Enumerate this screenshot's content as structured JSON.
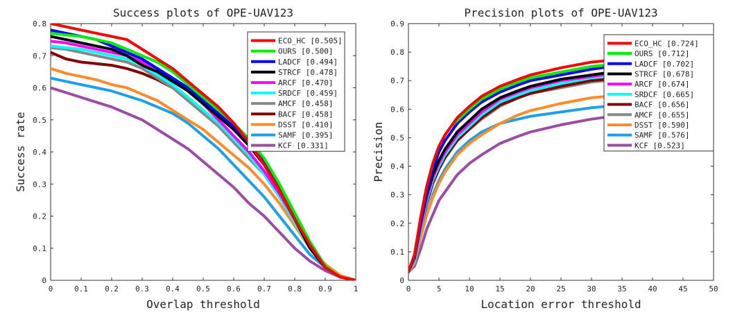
{
  "colors": {
    "ECO_HC": "#ff0000",
    "OURS": "#00ee00",
    "LADCF": "#0000ff",
    "STRCF": "#000000",
    "ARCF": "#ff00ff",
    "SRDCF": "#00ffff",
    "AMCF": "#888888",
    "BACF": "#800000",
    "DSST": "#ff8c2a",
    "SAMF": "#1ea0e6",
    "KCF": "#9b4da5"
  },
  "chart_data": [
    {
      "type": "line",
      "title": "Success plots of OPE-UAV123",
      "xlabel": "Overlap threshold",
      "ylabel": "Success rate",
      "xlim": [
        0,
        1
      ],
      "ylim": [
        0,
        0.8
      ],
      "xticks": [
        "0",
        "0.1",
        "0.2",
        "0.3",
        "0.4",
        "0.5",
        "0.6",
        "0.7",
        "0.8",
        "0.9",
        "1"
      ],
      "yticks": [
        "0",
        "0.1",
        "0.2",
        "0.3",
        "0.4",
        "0.5",
        "0.6",
        "0.7",
        "0.8"
      ],
      "legend_position": "top-right",
      "x": [
        0,
        0.05,
        0.1,
        0.15,
        0.2,
        0.25,
        0.3,
        0.35,
        0.4,
        0.45,
        0.5,
        0.55,
        0.6,
        0.65,
        0.7,
        0.75,
        0.8,
        0.85,
        0.9,
        0.95,
        1.0
      ],
      "series": [
        {
          "name": "ECO_HC [0.505]",
          "key": "ECO_HC",
          "values": [
            0.8,
            0.79,
            0.78,
            0.77,
            0.76,
            0.75,
            0.72,
            0.69,
            0.66,
            0.62,
            0.58,
            0.54,
            0.49,
            0.43,
            0.36,
            0.28,
            0.19,
            0.11,
            0.04,
            0.01,
            0.0
          ]
        },
        {
          "name": "OURS [0.500]",
          "key": "OURS",
          "values": [
            0.77,
            0.765,
            0.76,
            0.75,
            0.74,
            0.72,
            0.7,
            0.68,
            0.65,
            0.61,
            0.57,
            0.53,
            0.49,
            0.44,
            0.38,
            0.3,
            0.21,
            0.12,
            0.045,
            0.01,
            0.0
          ]
        },
        {
          "name": "LADCF [0.494]",
          "key": "LADCF",
          "values": [
            0.78,
            0.77,
            0.76,
            0.75,
            0.73,
            0.71,
            0.69,
            0.66,
            0.63,
            0.6,
            0.56,
            0.52,
            0.48,
            0.43,
            0.37,
            0.29,
            0.2,
            0.11,
            0.04,
            0.01,
            0.0
          ]
        },
        {
          "name": "STRCF [0.478]",
          "key": "STRCF",
          "values": [
            0.76,
            0.75,
            0.74,
            0.73,
            0.72,
            0.7,
            0.67,
            0.65,
            0.62,
            0.59,
            0.55,
            0.51,
            0.47,
            0.42,
            0.36,
            0.28,
            0.19,
            0.1,
            0.04,
            0.01,
            0.0
          ]
        },
        {
          "name": "ARCF [0.470]",
          "key": "ARCF",
          "values": [
            0.745,
            0.74,
            0.73,
            0.72,
            0.71,
            0.7,
            0.68,
            0.66,
            0.63,
            0.59,
            0.55,
            0.5,
            0.45,
            0.4,
            0.34,
            0.27,
            0.19,
            0.1,
            0.04,
            0.01,
            0.0
          ]
        },
        {
          "name": "SRDCF [0.459]",
          "key": "SRDCF",
          "values": [
            0.73,
            0.725,
            0.72,
            0.71,
            0.7,
            0.69,
            0.67,
            0.64,
            0.61,
            0.57,
            0.53,
            0.49,
            0.44,
            0.39,
            0.33,
            0.26,
            0.18,
            0.1,
            0.04,
            0.01,
            0.0
          ]
        },
        {
          "name": "AMCF [0.458]",
          "key": "AMCF",
          "values": [
            0.725,
            0.72,
            0.71,
            0.7,
            0.69,
            0.68,
            0.66,
            0.63,
            0.6,
            0.56,
            0.52,
            0.48,
            0.43,
            0.38,
            0.33,
            0.26,
            0.18,
            0.1,
            0.04,
            0.01,
            0.0
          ]
        },
        {
          "name": "BACF [0.458]",
          "key": "BACF",
          "values": [
            0.71,
            0.69,
            0.68,
            0.675,
            0.67,
            0.66,
            0.645,
            0.625,
            0.6,
            0.57,
            0.53,
            0.49,
            0.45,
            0.4,
            0.34,
            0.27,
            0.19,
            0.1,
            0.04,
            0.01,
            0.0
          ]
        },
        {
          "name": "DSST [0.410]",
          "key": "DSST",
          "values": [
            0.66,
            0.645,
            0.635,
            0.625,
            0.61,
            0.6,
            0.58,
            0.56,
            0.53,
            0.5,
            0.47,
            0.43,
            0.39,
            0.35,
            0.3,
            0.24,
            0.17,
            0.1,
            0.05,
            0.015,
            0.0
          ]
        },
        {
          "name": "SAMF [0.395]",
          "key": "SAMF",
          "values": [
            0.63,
            0.62,
            0.61,
            0.6,
            0.59,
            0.575,
            0.56,
            0.54,
            0.52,
            0.49,
            0.45,
            0.41,
            0.36,
            0.31,
            0.26,
            0.2,
            0.14,
            0.08,
            0.04,
            0.01,
            0.0
          ]
        },
        {
          "name": "KCF [0.331]",
          "key": "KCF",
          "values": [
            0.6,
            0.585,
            0.57,
            0.555,
            0.54,
            0.52,
            0.5,
            0.47,
            0.44,
            0.41,
            0.37,
            0.33,
            0.29,
            0.24,
            0.2,
            0.15,
            0.1,
            0.06,
            0.03,
            0.01,
            0.0
          ]
        }
      ]
    },
    {
      "type": "line",
      "title": "Precision plots of OPE-UAV123",
      "xlabel": "Location error threshold",
      "ylabel": "Precision",
      "xlim": [
        0,
        50
      ],
      "ylim": [
        0,
        0.9
      ],
      "xticks": [
        "0",
        "5",
        "10",
        "15",
        "20",
        "25",
        "30",
        "35",
        "40",
        "45",
        "50"
      ],
      "yticks": [
        "0",
        "0.1",
        "0.2",
        "0.3",
        "0.4",
        "0.5",
        "0.6",
        "0.7",
        "0.8",
        "0.9"
      ],
      "legend_position": "top-right",
      "x": [
        0,
        1,
        2,
        3,
        4,
        5,
        6,
        7,
        8,
        10,
        12,
        15,
        18,
        20,
        25,
        30,
        35,
        40,
        45,
        50
      ],
      "series": [
        {
          "name": "ECO_HC [0.724]",
          "key": "ECO_HC",
          "values": [
            0.03,
            0.09,
            0.22,
            0.33,
            0.41,
            0.47,
            0.51,
            0.54,
            0.57,
            0.61,
            0.645,
            0.68,
            0.705,
            0.72,
            0.745,
            0.765,
            0.775,
            0.785,
            0.795,
            0.8
          ]
        },
        {
          "name": "OURS [0.712]",
          "key": "OURS",
          "values": [
            0.03,
            0.09,
            0.22,
            0.33,
            0.41,
            0.47,
            0.51,
            0.54,
            0.56,
            0.6,
            0.635,
            0.67,
            0.695,
            0.71,
            0.73,
            0.75,
            0.76,
            0.77,
            0.78,
            0.79
          ]
        },
        {
          "name": "LADCF [0.702]",
          "key": "LADCF",
          "values": [
            0.03,
            0.08,
            0.2,
            0.31,
            0.39,
            0.45,
            0.49,
            0.52,
            0.55,
            0.59,
            0.625,
            0.66,
            0.685,
            0.7,
            0.72,
            0.74,
            0.755,
            0.765,
            0.775,
            0.785
          ]
        },
        {
          "name": "STRCF [0.678]",
          "key": "STRCF",
          "values": [
            0.03,
            0.08,
            0.2,
            0.3,
            0.37,
            0.42,
            0.46,
            0.49,
            0.52,
            0.56,
            0.6,
            0.64,
            0.665,
            0.68,
            0.705,
            0.72,
            0.735,
            0.745,
            0.755,
            0.76
          ]
        },
        {
          "name": "ARCF [0.674]",
          "key": "ARCF",
          "values": [
            0.03,
            0.08,
            0.19,
            0.29,
            0.36,
            0.41,
            0.45,
            0.48,
            0.51,
            0.55,
            0.59,
            0.635,
            0.66,
            0.675,
            0.7,
            0.715,
            0.73,
            0.74,
            0.75,
            0.76
          ]
        },
        {
          "name": "SRDCF [0.665]",
          "key": "SRDCF",
          "values": [
            0.03,
            0.07,
            0.18,
            0.28,
            0.35,
            0.4,
            0.44,
            0.47,
            0.5,
            0.54,
            0.58,
            0.625,
            0.65,
            0.665,
            0.69,
            0.71,
            0.72,
            0.73,
            0.74,
            0.75
          ]
        },
        {
          "name": "BACF [0.656]",
          "key": "BACF",
          "values": [
            0.03,
            0.07,
            0.18,
            0.27,
            0.34,
            0.39,
            0.43,
            0.46,
            0.49,
            0.53,
            0.57,
            0.615,
            0.64,
            0.655,
            0.68,
            0.7,
            0.71,
            0.72,
            0.73,
            0.74
          ]
        },
        {
          "name": "AMCF [0.655]",
          "key": "AMCF",
          "values": [
            0.03,
            0.07,
            0.18,
            0.27,
            0.34,
            0.39,
            0.43,
            0.46,
            0.49,
            0.53,
            0.565,
            0.61,
            0.64,
            0.655,
            0.675,
            0.695,
            0.705,
            0.715,
            0.725,
            0.73
          ]
        },
        {
          "name": "DSST [0.590]",
          "key": "DSST",
          "values": [
            0.03,
            0.06,
            0.15,
            0.23,
            0.29,
            0.34,
            0.38,
            0.41,
            0.44,
            0.48,
            0.51,
            0.55,
            0.58,
            0.595,
            0.62,
            0.64,
            0.65,
            0.66,
            0.67,
            0.68
          ]
        },
        {
          "name": "SAMF [0.576]",
          "key": "SAMF",
          "values": [
            0.03,
            0.06,
            0.15,
            0.23,
            0.3,
            0.35,
            0.39,
            0.42,
            0.45,
            0.49,
            0.52,
            0.55,
            0.565,
            0.575,
            0.59,
            0.605,
            0.615,
            0.625,
            0.635,
            0.64
          ]
        },
        {
          "name": "KCF [0.523]",
          "key": "KCF",
          "values": [
            0.03,
            0.05,
            0.11,
            0.18,
            0.23,
            0.28,
            0.31,
            0.34,
            0.37,
            0.41,
            0.44,
            0.48,
            0.505,
            0.52,
            0.545,
            0.565,
            0.58,
            0.59,
            0.6,
            0.61
          ]
        }
      ]
    }
  ]
}
